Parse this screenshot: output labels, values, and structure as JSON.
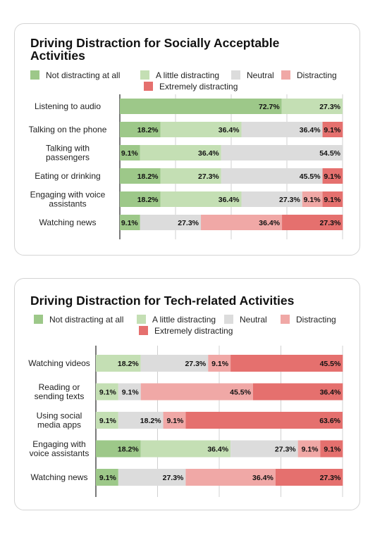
{
  "colors": {
    "not_distracting": "#9dc889",
    "little": "#c4dfb4",
    "neutral": "#dcdcdc",
    "distracting": "#f0a8a6",
    "extreme": "#e5706e"
  },
  "chart_data": [
    {
      "type": "bar",
      "orientation": "horizontal-stacked-100",
      "title": "Driving Distraction for Socially Acceptable Activities",
      "xlim": [
        0,
        100
      ],
      "grid": true,
      "legend_placement": "top",
      "categories": [
        "Listening to audio",
        "Talking on the phone",
        "Talking with passengers",
        "Eating or drinking",
        "Engaging with voice assistants",
        "Watching news"
      ],
      "series": [
        {
          "name": "Not distracting at all",
          "color_key": "not_distracting",
          "values": [
            72.7,
            18.2,
            9.1,
            18.2,
            18.2,
            9.1
          ]
        },
        {
          "name": "A little distracting",
          "color_key": "little",
          "values": [
            27.3,
            36.4,
            36.4,
            27.3,
            36.4,
            0
          ]
        },
        {
          "name": "Neutral",
          "color_key": "neutral",
          "values": [
            0,
            36.4,
            54.5,
            45.5,
            27.3,
            27.3
          ]
        },
        {
          "name": "Distracting",
          "color_key": "distracting",
          "values": [
            0,
            0,
            0,
            0,
            9.1,
            36.4
          ]
        },
        {
          "name": "Extremely distracting",
          "color_key": "extreme",
          "values": [
            0,
            9.1,
            0,
            9.1,
            9.1,
            27.3
          ]
        }
      ]
    },
    {
      "type": "bar",
      "orientation": "horizontal-stacked-100",
      "title": "Driving Distraction for Tech-related Activities",
      "xlim": [
        0,
        100
      ],
      "grid": true,
      "legend_placement": "top",
      "categories": [
        "Watching videos",
        "Reading or sending texts",
        "Using social media apps",
        "Engaging with voice assistants",
        "Watching news"
      ],
      "series": [
        {
          "name": "Not distracting at all",
          "color_key": "not_distracting",
          "values": [
            0,
            0,
            0,
            18.2,
            9.1
          ]
        },
        {
          "name": "A little distracting",
          "color_key": "little",
          "values": [
            18.2,
            9.1,
            9.1,
            36.4,
            0
          ]
        },
        {
          "name": "Neutral",
          "color_key": "neutral",
          "values": [
            27.3,
            9.1,
            18.2,
            27.3,
            27.3
          ]
        },
        {
          "name": "Distracting",
          "color_key": "distracting",
          "values": [
            9.1,
            45.5,
            9.1,
            9.1,
            36.4
          ]
        },
        {
          "name": "Extremely distracting",
          "color_key": "extreme",
          "values": [
            45.5,
            36.4,
            63.6,
            9.1,
            27.3
          ]
        }
      ]
    }
  ]
}
